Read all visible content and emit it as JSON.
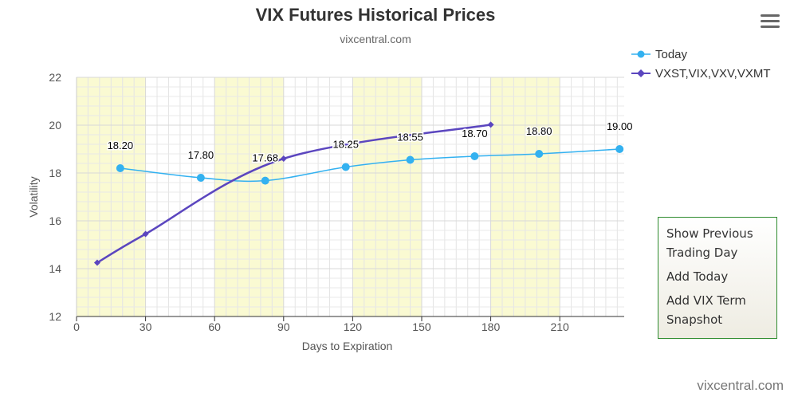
{
  "chart_data": {
    "type": "line",
    "title": "VIX Futures Historical Prices",
    "subtitle": "vixcentral.com",
    "xlabel": "Days to Expiration",
    "ylabel": "Volatility",
    "xlim": [
      0,
      238
    ],
    "ylim": [
      12,
      22
    ],
    "x_ticks": [
      0,
      30,
      60,
      90,
      120,
      150,
      180,
      210
    ],
    "y_ticks": [
      12,
      14,
      16,
      18,
      20,
      22
    ],
    "grid": true,
    "legend_position": "top-right",
    "shaded_bands": [
      [
        0,
        30
      ],
      [
        60,
        90
      ],
      [
        120,
        150
      ],
      [
        180,
        210
      ]
    ],
    "series": [
      {
        "name": "Today",
        "color": "#33b1f0",
        "marker": "circle",
        "x": [
          19,
          54,
          82,
          117,
          145,
          173,
          201,
          236
        ],
        "y": [
          18.2,
          17.8,
          17.68,
          18.25,
          18.55,
          18.7,
          18.8,
          19.0
        ],
        "labels": [
          "18.20",
          "17.80",
          "17.68",
          "18.25",
          "18.55",
          "18.70",
          "18.80",
          "19.00"
        ]
      },
      {
        "name": "VXST,VIX,VXV,VXMT",
        "color": "#5b46bf",
        "marker": "diamond",
        "x": [
          9,
          30,
          90,
          180
        ],
        "y": [
          14.25,
          15.45,
          18.6,
          20.02
        ]
      }
    ]
  },
  "menu": {
    "items": [
      "Show Previous Trading Day",
      "Add Today",
      "Add VIX Term Snapshot"
    ]
  },
  "watermark": "vixcentral.com",
  "icons": {
    "menu": "hamburger-icon"
  }
}
